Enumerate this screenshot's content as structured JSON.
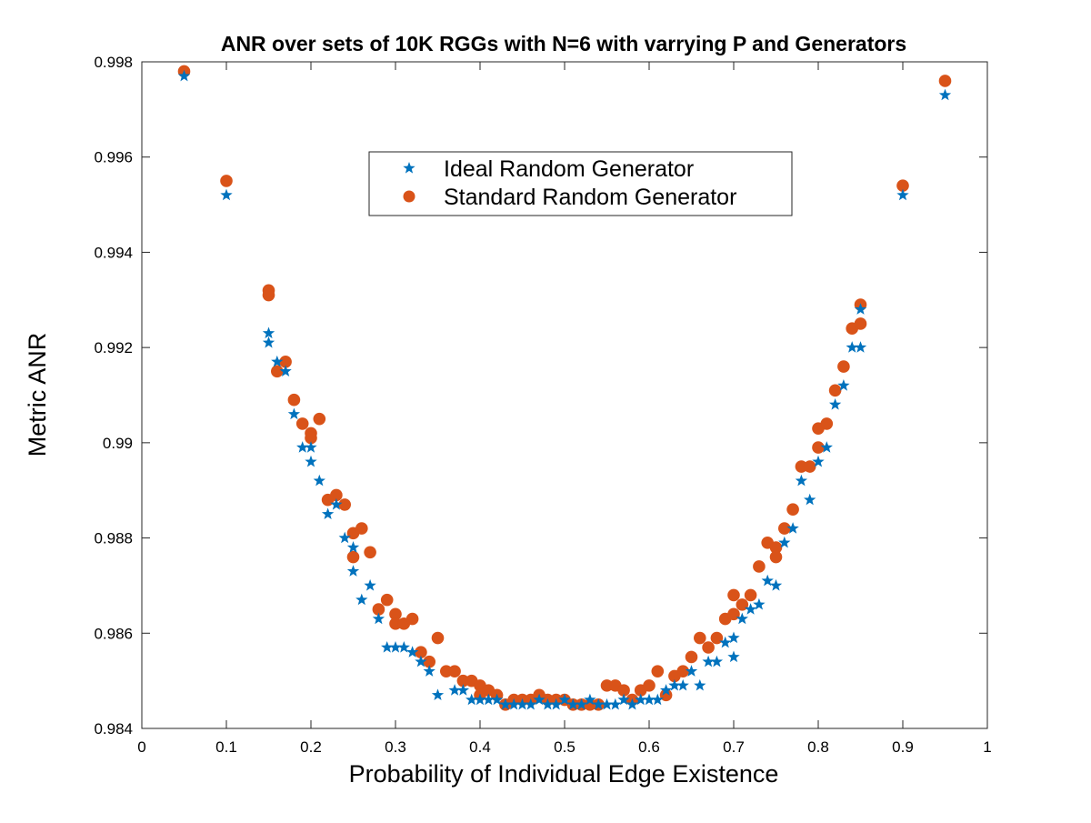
{
  "chart_data": {
    "type": "scatter",
    "title": "ANR over sets of 10K RGGs with N=6 with varrying P and Generators",
    "xlabel": "Probability of Individual Edge Existence",
    "ylabel": "Metric ANR",
    "xlim": [
      0,
      1
    ],
    "ylim": [
      0.984,
      0.998
    ],
    "xticks": [
      0,
      0.1,
      0.2,
      0.3,
      0.4,
      0.5,
      0.6,
      0.7,
      0.8,
      0.9,
      1
    ],
    "xtick_labels": [
      "0",
      "0.1",
      "0.2",
      "0.3",
      "0.4",
      "0.5",
      "0.6",
      "0.7",
      "0.8",
      "0.9",
      "1"
    ],
    "yticks": [
      0.984,
      0.986,
      0.988,
      0.99,
      0.992,
      0.994,
      0.996,
      0.998
    ],
    "ytick_labels": [
      "0.984",
      "0.986",
      "0.988",
      "0.99",
      "0.992",
      "0.994",
      "0.996",
      "0.998"
    ],
    "grid": false,
    "legend_position": "upper-center",
    "series": [
      {
        "name": "Ideal Random Generator",
        "marker": "star",
        "color": "#0072BD",
        "points": [
          [
            0.05,
            0.9977
          ],
          [
            0.1,
            0.9952
          ],
          [
            0.15,
            0.9923
          ],
          [
            0.15,
            0.9921
          ],
          [
            0.16,
            0.9917
          ],
          [
            0.17,
            0.9915
          ],
          [
            0.18,
            0.9906
          ],
          [
            0.19,
            0.9899
          ],
          [
            0.2,
            0.9899
          ],
          [
            0.2,
            0.9896
          ],
          [
            0.21,
            0.9892
          ],
          [
            0.22,
            0.9885
          ],
          [
            0.23,
            0.9887
          ],
          [
            0.24,
            0.988
          ],
          [
            0.25,
            0.9878
          ],
          [
            0.25,
            0.9873
          ],
          [
            0.26,
            0.9867
          ],
          [
            0.27,
            0.987
          ],
          [
            0.28,
            0.9863
          ],
          [
            0.29,
            0.9857
          ],
          [
            0.3,
            0.9857
          ],
          [
            0.31,
            0.9857
          ],
          [
            0.32,
            0.9856
          ],
          [
            0.33,
            0.9854
          ],
          [
            0.34,
            0.9852
          ],
          [
            0.35,
            0.9847
          ],
          [
            0.37,
            0.9848
          ],
          [
            0.38,
            0.9848
          ],
          [
            0.39,
            0.9846
          ],
          [
            0.4,
            0.9846
          ],
          [
            0.41,
            0.9846
          ],
          [
            0.42,
            0.9846
          ],
          [
            0.43,
            0.9845
          ],
          [
            0.44,
            0.9845
          ],
          [
            0.45,
            0.9845
          ],
          [
            0.46,
            0.9845
          ],
          [
            0.47,
            0.9846
          ],
          [
            0.48,
            0.9845
          ],
          [
            0.49,
            0.9845
          ],
          [
            0.5,
            0.9846
          ],
          [
            0.51,
            0.9845
          ],
          [
            0.52,
            0.9845
          ],
          [
            0.53,
            0.9846
          ],
          [
            0.54,
            0.9845
          ],
          [
            0.55,
            0.9845
          ],
          [
            0.56,
            0.9845
          ],
          [
            0.57,
            0.9846
          ],
          [
            0.58,
            0.9845
          ],
          [
            0.59,
            0.9846
          ],
          [
            0.6,
            0.9846
          ],
          [
            0.61,
            0.9846
          ],
          [
            0.62,
            0.9848
          ],
          [
            0.63,
            0.9849
          ],
          [
            0.64,
            0.9849
          ],
          [
            0.65,
            0.9852
          ],
          [
            0.66,
            0.9849
          ],
          [
            0.67,
            0.9854
          ],
          [
            0.68,
            0.9854
          ],
          [
            0.69,
            0.9858
          ],
          [
            0.7,
            0.9859
          ],
          [
            0.7,
            0.9855
          ],
          [
            0.71,
            0.9863
          ],
          [
            0.72,
            0.9865
          ],
          [
            0.73,
            0.9866
          ],
          [
            0.74,
            0.9871
          ],
          [
            0.75,
            0.987
          ],
          [
            0.76,
            0.9879
          ],
          [
            0.77,
            0.9882
          ],
          [
            0.78,
            0.9892
          ],
          [
            0.79,
            0.9888
          ],
          [
            0.8,
            0.9896
          ],
          [
            0.81,
            0.9899
          ],
          [
            0.82,
            0.9908
          ],
          [
            0.83,
            0.9912
          ],
          [
            0.84,
            0.992
          ],
          [
            0.85,
            0.992
          ],
          [
            0.85,
            0.9928
          ],
          [
            0.9,
            0.9952
          ],
          [
            0.95,
            0.9973
          ]
        ]
      },
      {
        "name": "Standard Random Generator",
        "marker": "circle",
        "color": "#D95319",
        "points": [
          [
            0.05,
            0.9978
          ],
          [
            0.1,
            0.9955
          ],
          [
            0.15,
            0.9932
          ],
          [
            0.15,
            0.9931
          ],
          [
            0.16,
            0.9915
          ],
          [
            0.17,
            0.9917
          ],
          [
            0.18,
            0.9909
          ],
          [
            0.19,
            0.9904
          ],
          [
            0.2,
            0.9902
          ],
          [
            0.2,
            0.9901
          ],
          [
            0.21,
            0.9905
          ],
          [
            0.22,
            0.9888
          ],
          [
            0.23,
            0.9889
          ],
          [
            0.24,
            0.9887
          ],
          [
            0.25,
            0.9881
          ],
          [
            0.25,
            0.9876
          ],
          [
            0.26,
            0.9882
          ],
          [
            0.27,
            0.9877
          ],
          [
            0.28,
            0.9865
          ],
          [
            0.29,
            0.9867
          ],
          [
            0.3,
            0.9864
          ],
          [
            0.3,
            0.9862
          ],
          [
            0.31,
            0.9862
          ],
          [
            0.32,
            0.9863
          ],
          [
            0.33,
            0.9856
          ],
          [
            0.34,
            0.9854
          ],
          [
            0.35,
            0.9859
          ],
          [
            0.36,
            0.9852
          ],
          [
            0.37,
            0.9852
          ],
          [
            0.38,
            0.985
          ],
          [
            0.39,
            0.985
          ],
          [
            0.4,
            0.9849
          ],
          [
            0.4,
            0.9847
          ],
          [
            0.41,
            0.9848
          ],
          [
            0.42,
            0.9847
          ],
          [
            0.43,
            0.9845
          ],
          [
            0.44,
            0.9846
          ],
          [
            0.45,
            0.9846
          ],
          [
            0.46,
            0.9846
          ],
          [
            0.47,
            0.9847
          ],
          [
            0.48,
            0.9846
          ],
          [
            0.49,
            0.9846
          ],
          [
            0.5,
            0.9846
          ],
          [
            0.51,
            0.9845
          ],
          [
            0.52,
            0.9845
          ],
          [
            0.53,
            0.9845
          ],
          [
            0.54,
            0.9845
          ],
          [
            0.55,
            0.9849
          ],
          [
            0.56,
            0.9849
          ],
          [
            0.57,
            0.9848
          ],
          [
            0.58,
            0.9846
          ],
          [
            0.59,
            0.9848
          ],
          [
            0.6,
            0.9849
          ],
          [
            0.61,
            0.9852
          ],
          [
            0.62,
            0.9847
          ],
          [
            0.63,
            0.9851
          ],
          [
            0.64,
            0.9852
          ],
          [
            0.65,
            0.9855
          ],
          [
            0.66,
            0.9859
          ],
          [
            0.67,
            0.9857
          ],
          [
            0.68,
            0.9859
          ],
          [
            0.69,
            0.9863
          ],
          [
            0.7,
            0.9864
          ],
          [
            0.7,
            0.9868
          ],
          [
            0.71,
            0.9866
          ],
          [
            0.72,
            0.9868
          ],
          [
            0.73,
            0.9874
          ],
          [
            0.74,
            0.9879
          ],
          [
            0.75,
            0.9878
          ],
          [
            0.75,
            0.9876
          ],
          [
            0.76,
            0.9882
          ],
          [
            0.77,
            0.9886
          ],
          [
            0.78,
            0.9895
          ],
          [
            0.79,
            0.9895
          ],
          [
            0.8,
            0.9899
          ],
          [
            0.8,
            0.9903
          ],
          [
            0.81,
            0.9904
          ],
          [
            0.82,
            0.9911
          ],
          [
            0.83,
            0.9916
          ],
          [
            0.84,
            0.9924
          ],
          [
            0.85,
            0.9925
          ],
          [
            0.85,
            0.9929
          ],
          [
            0.9,
            0.9954
          ],
          [
            0.95,
            0.9976
          ]
        ]
      }
    ]
  }
}
